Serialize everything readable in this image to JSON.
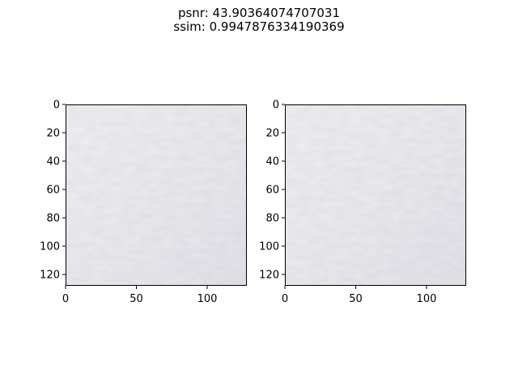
{
  "figure": {
    "title_lines": [
      "psnr: 43.90364074707031",
      "ssim: 0.9947876334190369"
    ]
  },
  "chart_data": [
    {
      "type": "heatmap",
      "title": "",
      "xlabel": "",
      "ylabel": "",
      "image_size": [
        128,
        128
      ],
      "xlim": [
        0,
        128
      ],
      "ylim": [
        128,
        0
      ],
      "xticks": [
        0,
        50,
        100
      ],
      "yticks": [
        0,
        20,
        40,
        60,
        80,
        100,
        120
      ],
      "grid": false,
      "content": "light grey textured image patch",
      "base_color": "#e9e9ee"
    },
    {
      "type": "heatmap",
      "title": "",
      "xlabel": "",
      "ylabel": "",
      "image_size": [
        128,
        128
      ],
      "xlim": [
        0,
        128
      ],
      "ylim": [
        128,
        0
      ],
      "xticks": [
        0,
        50,
        100
      ],
      "yticks": [
        0,
        20,
        40,
        60,
        80,
        100,
        120
      ],
      "grid": false,
      "content": "light grey textured image patch",
      "base_color": "#e9e9ee"
    }
  ]
}
